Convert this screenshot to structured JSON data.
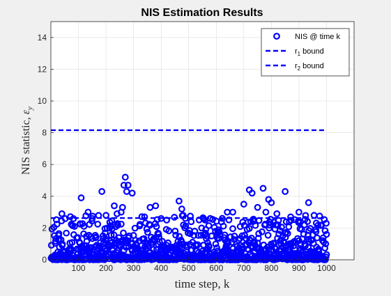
{
  "chart_data": {
    "type": "scatter",
    "title": "NIS Estimation Results",
    "xlabel": "time step, k",
    "ylabel": "NIS statistic, ",
    "ylabel_symbol": "ε",
    "ylabel_symbol_sub": "y",
    "xlim": [
      0,
      1100
    ],
    "ylim": [
      0,
      15
    ],
    "xticks": [
      100,
      200,
      300,
      400,
      500,
      600,
      700,
      800,
      900,
      1000
    ],
    "yticks": [
      0,
      2,
      4,
      6,
      8,
      10,
      12,
      14
    ],
    "grid": true,
    "legend_position": "top-right",
    "series": [
      {
        "name": "NIS @ time k",
        "kind": "scatter",
        "marker": "circle",
        "color": "#0000ff",
        "n_points": 1000,
        "mean": 1.0,
        "highlights": [
          {
            "x": 40,
            "y": 2.9
          },
          {
            "x": 110,
            "y": 3.9
          },
          {
            "x": 135,
            "y": 3.0
          },
          {
            "x": 150,
            "y": 2.6
          },
          {
            "x": 185,
            "y": 4.3
          },
          {
            "x": 200,
            "y": 2.8
          },
          {
            "x": 230,
            "y": 3.4
          },
          {
            "x": 240,
            "y": 2.9
          },
          {
            "x": 255,
            "y": 3.0
          },
          {
            "x": 260,
            "y": 3.3
          },
          {
            "x": 265,
            "y": 4.7
          },
          {
            "x": 270,
            "y": 5.2
          },
          {
            "x": 275,
            "y": 4.3
          },
          {
            "x": 280,
            "y": 4.7
          },
          {
            "x": 295,
            "y": 4.2
          },
          {
            "x": 340,
            "y": 2.7
          },
          {
            "x": 360,
            "y": 3.3
          },
          {
            "x": 380,
            "y": 3.4
          },
          {
            "x": 400,
            "y": 2.6
          },
          {
            "x": 420,
            "y": 2.5
          },
          {
            "x": 465,
            "y": 3.7
          },
          {
            "x": 475,
            "y": 3.2
          },
          {
            "x": 480,
            "y": 2.8
          },
          {
            "x": 560,
            "y": 2.5
          },
          {
            "x": 640,
            "y": 3.0
          },
          {
            "x": 660,
            "y": 3.0
          },
          {
            "x": 700,
            "y": 3.5
          },
          {
            "x": 720,
            "y": 4.4
          },
          {
            "x": 730,
            "y": 4.2
          },
          {
            "x": 750,
            "y": 3.3
          },
          {
            "x": 770,
            "y": 4.5
          },
          {
            "x": 780,
            "y": 3.0
          },
          {
            "x": 790,
            "y": 3.8
          },
          {
            "x": 800,
            "y": 3.6
          },
          {
            "x": 820,
            "y": 2.9
          },
          {
            "x": 850,
            "y": 4.3
          },
          {
            "x": 870,
            "y": 2.7
          },
          {
            "x": 900,
            "y": 3.0
          },
          {
            "x": 935,
            "y": 3.6
          },
          {
            "x": 955,
            "y": 2.8
          },
          {
            "x": 1000,
            "y": 1.6
          }
        ]
      },
      {
        "name": "r",
        "name_sub": "1",
        "name_suffix": " bound",
        "kind": "hline",
        "style": "dashed",
        "color": "#0000ff",
        "y": 2.63,
        "x": [
          0,
          1000
        ]
      },
      {
        "name": "r",
        "name_sub": "2",
        "name_suffix": " bound",
        "kind": "hline",
        "style": "dashed",
        "color": "#0000ff",
        "y": 8.16,
        "x": [
          0,
          1000
        ]
      }
    ]
  }
}
